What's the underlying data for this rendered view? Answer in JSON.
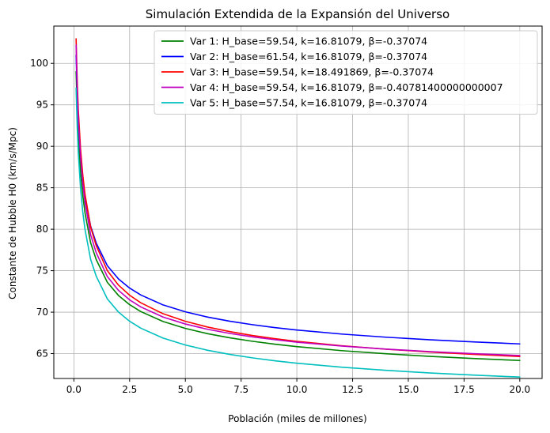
{
  "chart_data": {
    "type": "line",
    "title": "Simulación Extendida de la Expansión del Universo",
    "xlabel": "Población (miles de millones)",
    "ylabel": "Constante de Hubble H0 (km/s/Mpc)",
    "xlim": [
      -0.9,
      21.0
    ],
    "ylim": [
      62.0,
      104.5
    ],
    "xticks": [
      0.0,
      2.5,
      5.0,
      7.5,
      10.0,
      12.5,
      15.0,
      17.5,
      20.0
    ],
    "xtick_labels": [
      "0.0",
      "2.5",
      "5.0",
      "7.5",
      "10.0",
      "12.5",
      "15.0",
      "17.5",
      "20.0"
    ],
    "yticks": [
      65,
      70,
      75,
      80,
      85,
      90,
      95,
      100
    ],
    "ytick_labels": [
      "65",
      "70",
      "75",
      "80",
      "85",
      "90",
      "95",
      "100"
    ],
    "grid": true,
    "legend_position": "top-right",
    "series": [
      {
        "name": "Var 1: H_base=59.54, k=16.81079, β=-0.37074",
        "color": "#008000",
        "x": [
          0.1,
          0.15,
          0.2,
          0.3,
          0.4,
          0.5,
          0.75,
          1.0,
          1.5,
          2.0,
          2.5,
          3.0,
          4.0,
          5.0,
          6.0,
          7.0,
          8.0,
          9.0,
          10.0,
          12.0,
          14.0,
          16.0,
          18.0,
          20.0
        ],
        "y": [
          99.01,
          94.33,
          91.16,
          86.9,
          84.06,
          81.96,
          78.38,
          76.35,
          73.6,
          72.01,
          70.9,
          70.07,
          68.87,
          68.04,
          67.4,
          66.9,
          66.49,
          66.14,
          65.84,
          65.36,
          64.98,
          64.66,
          64.4,
          64.17
        ]
      },
      {
        "name": "Var 2: H_base=61.54, k=16.81079, β=-0.37074",
        "color": "#0000ff",
        "x": [
          0.1,
          0.15,
          0.2,
          0.3,
          0.4,
          0.5,
          0.75,
          1.0,
          1.5,
          2.0,
          2.5,
          3.0,
          4.0,
          5.0,
          6.0,
          7.0,
          8.0,
          9.0,
          10.0,
          12.0,
          14.0,
          16.0,
          18.0,
          20.0
        ],
        "y": [
          101.01,
          96.33,
          93.16,
          88.9,
          86.06,
          83.96,
          80.38,
          78.35,
          75.6,
          74.01,
          72.9,
          72.07,
          70.87,
          70.04,
          69.4,
          68.9,
          68.49,
          68.14,
          67.84,
          67.36,
          66.98,
          66.66,
          66.4,
          66.17
        ]
      },
      {
        "name": "Var 3: H_base=59.54, k=18.491869, β=-0.37074",
        "color": "#ff0000",
        "x": [
          0.1,
          0.15,
          0.2,
          0.3,
          0.4,
          0.5,
          0.75,
          1.0,
          1.5,
          2.0,
          2.5,
          3.0,
          4.0,
          5.0,
          6.0,
          7.0,
          8.0,
          9.0,
          10.0,
          12.0,
          14.0,
          16.0,
          18.0,
          20.0
        ],
        "y": [
          102.96,
          97.82,
          94.33,
          89.64,
          86.52,
          84.21,
          80.27,
          78.03,
          75.01,
          73.26,
          72.04,
          71.13,
          69.81,
          68.9,
          68.2,
          67.65,
          67.19,
          66.81,
          66.48,
          65.95,
          65.53,
          65.19,
          64.9,
          64.65
        ]
      },
      {
        "name": "Var 4: H_base=59.54, k=16.81079, β=-0.40781400000000007",
        "color": "#bf00bf",
        "x": [
          0.1,
          0.15,
          0.2,
          0.3,
          0.4,
          0.5,
          0.75,
          1.0,
          1.5,
          2.0,
          2.5,
          3.0,
          4.0,
          5.0,
          6.0,
          7.0,
          8.0,
          9.0,
          10.0,
          12.0,
          14.0,
          16.0,
          18.0,
          20.0
        ],
        "y": [
          102.2,
          96.91,
          93.35,
          88.62,
          85.5,
          83.21,
          79.35,
          77.18,
          74.29,
          72.63,
          71.48,
          70.63,
          69.41,
          68.57,
          67.93,
          67.43,
          67.02,
          66.68,
          66.38,
          65.91,
          65.54,
          65.24,
          64.99,
          64.77
        ]
      },
      {
        "name": "Var 5: H_base=57.54, k=16.81079, β=-0.37074",
        "color": "#00bfbf",
        "x": [
          0.1,
          0.15,
          0.2,
          0.3,
          0.4,
          0.5,
          0.75,
          1.0,
          1.5,
          2.0,
          2.5,
          3.0,
          4.0,
          5.0,
          6.0,
          7.0,
          8.0,
          9.0,
          10.0,
          12.0,
          14.0,
          16.0,
          18.0,
          20.0
        ],
        "y": [
          97.01,
          92.33,
          89.16,
          84.9,
          82.06,
          79.96,
          76.38,
          74.35,
          71.6,
          70.01,
          68.9,
          68.07,
          66.87,
          66.04,
          65.4,
          64.9,
          64.49,
          64.14,
          63.84,
          63.36,
          62.98,
          62.66,
          62.4,
          62.17
        ]
      }
    ]
  }
}
